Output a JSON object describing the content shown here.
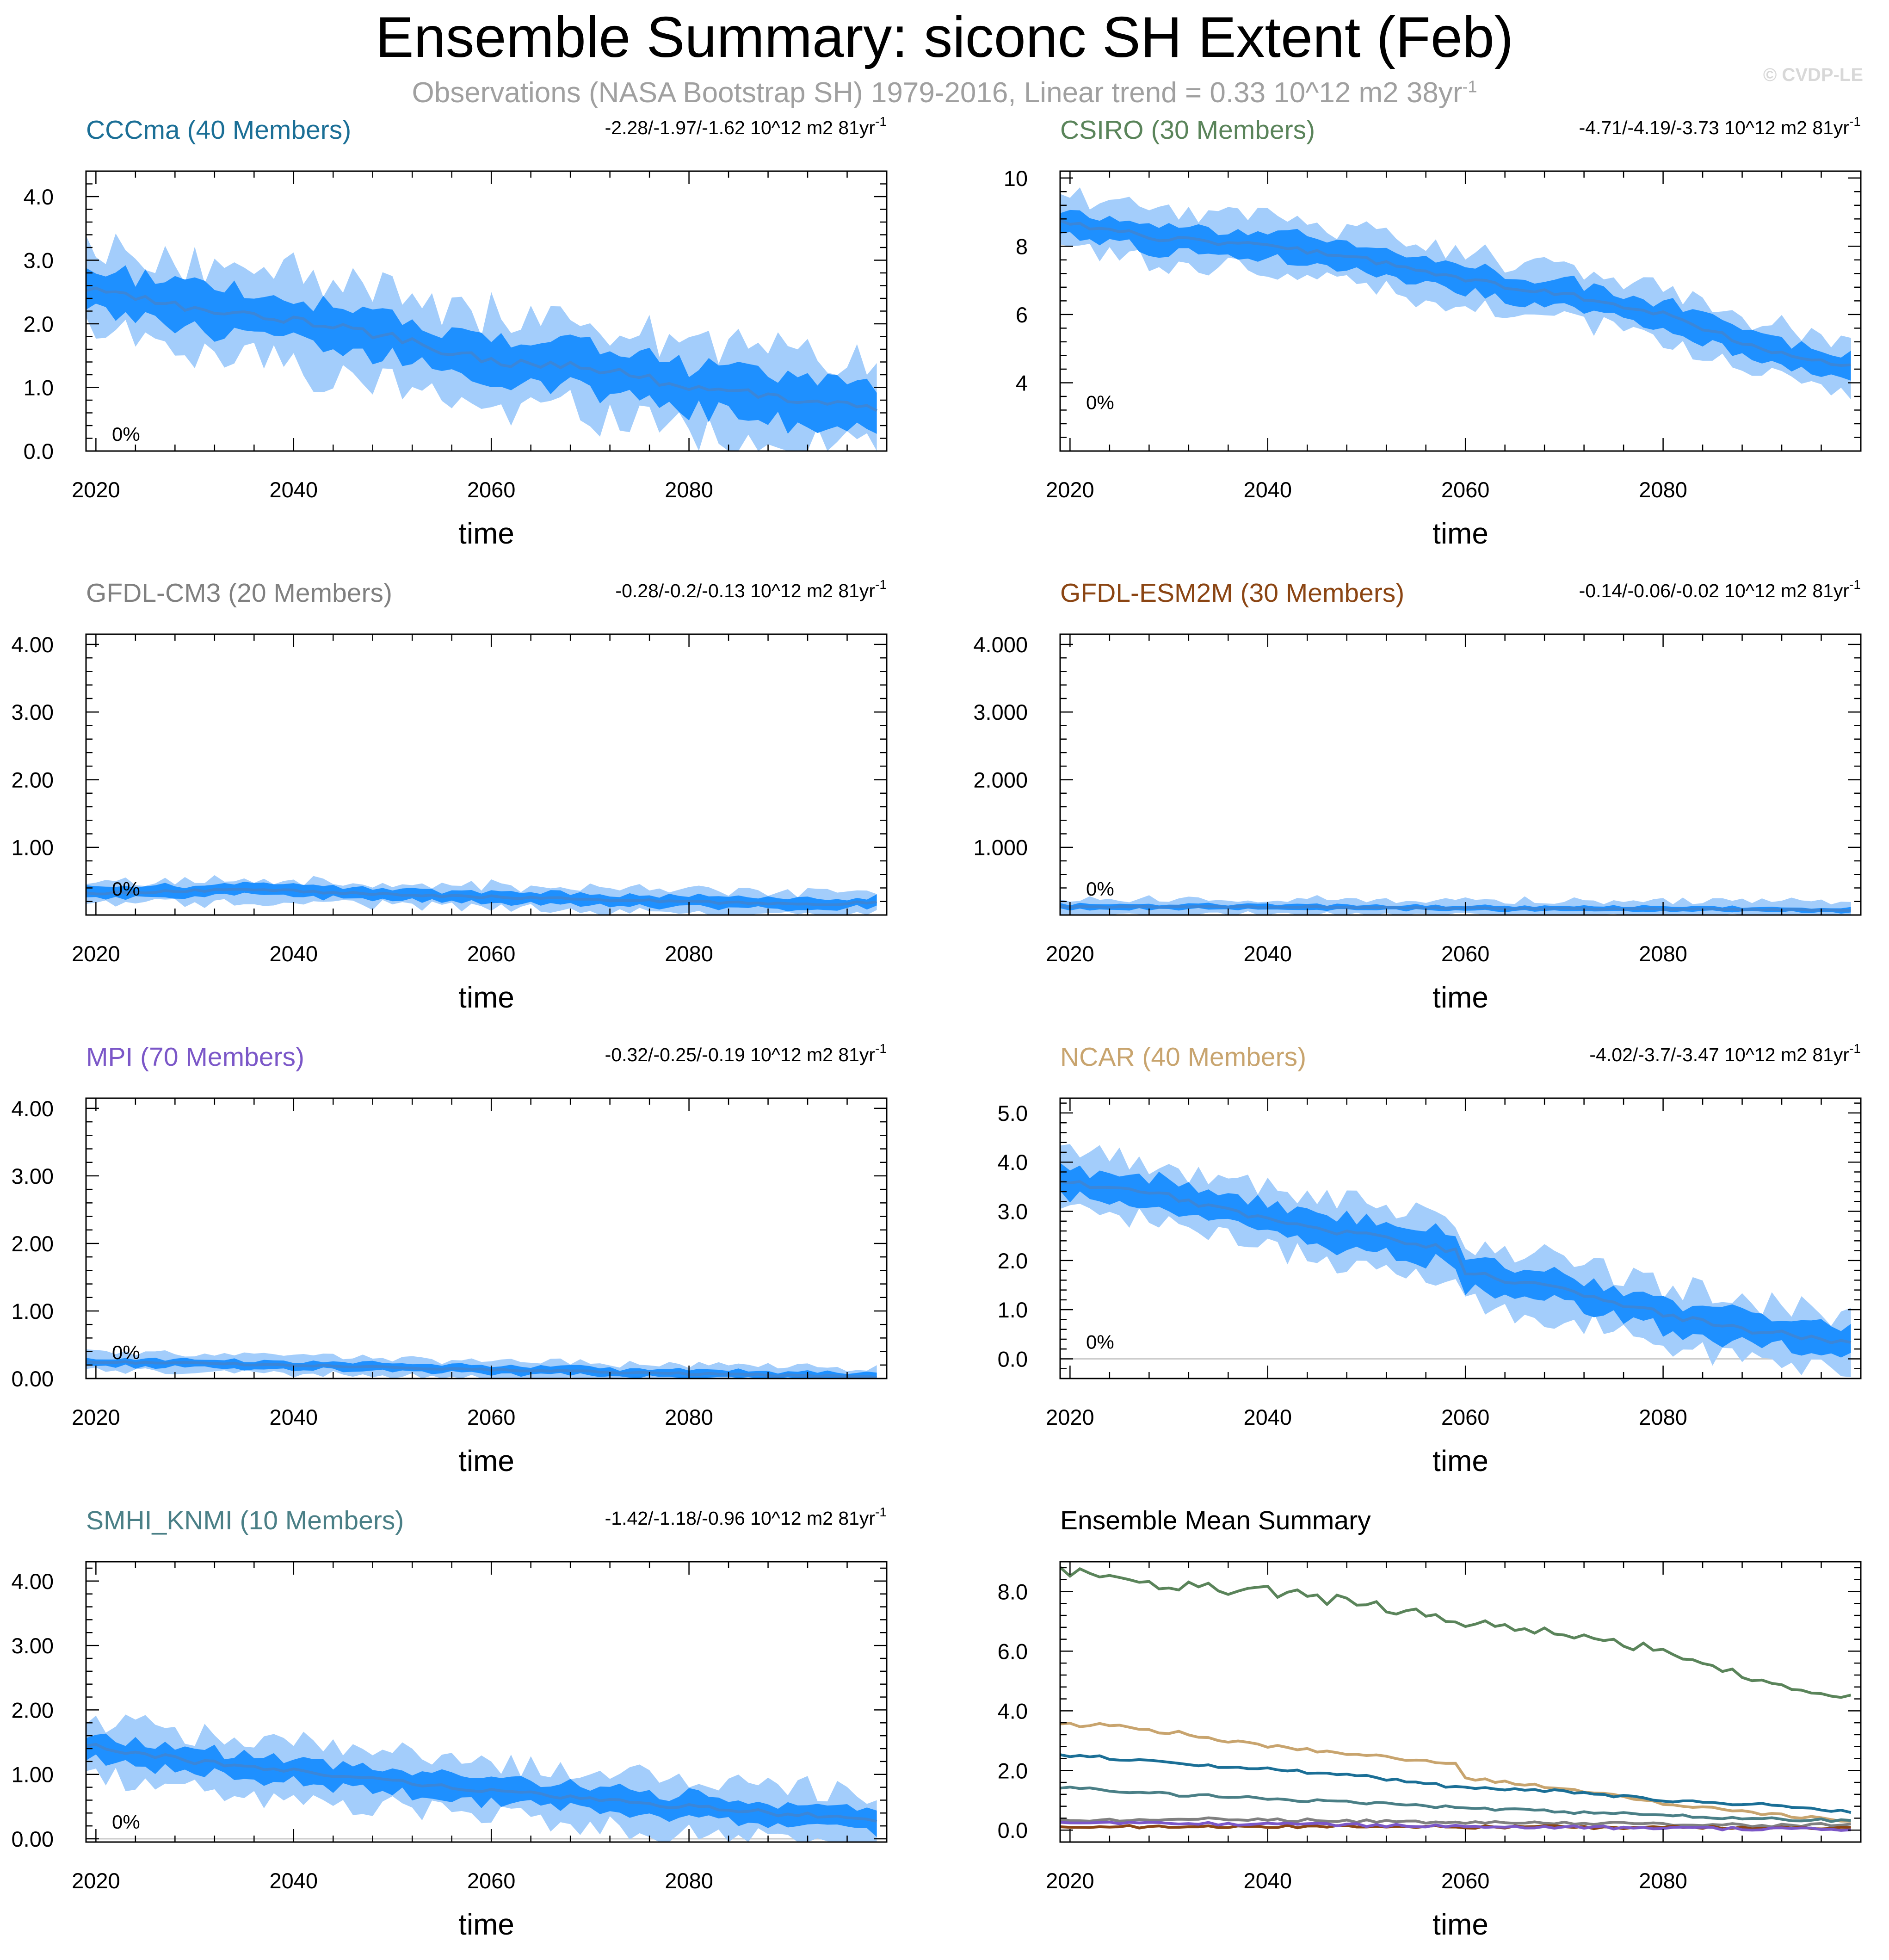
{
  "figure": {
    "title": "Ensemble Summary: siconc SH Extent (Feb)",
    "subtitle_main": "Observations (NASA Bootstrap SH) 1979-2016, Linear trend = 0.33 10^12 m2 38yr",
    "subtitle_sup": "-1",
    "copyright": "© CVDP-LE",
    "colors": {
      "inner_band": "#1e90ff",
      "outer_band": "#a3cdfb",
      "mean_line": "#3b86d8",
      "axis": "#000000",
      "zero_line": "#cccccc"
    }
  },
  "chart_data": [
    {
      "type": "area",
      "title": "CCCma (40 Members)",
      "title_color": "#1b6f96",
      "trend_text": "-2.28/-1.97/-1.62 10^12 m2 81yr",
      "trend_sup": "-1",
      "percent_label": "0%",
      "xlabel": "time",
      "ylabel": "",
      "xlim": [
        2019,
        2100
      ],
      "ylim": [
        0.0,
        4.4
      ],
      "xticks": [
        2020,
        2040,
        2060,
        2080
      ],
      "yticks": [
        0.0,
        1.0,
        2.0,
        3.0,
        4.0
      ],
      "ytick_labels": [
        "0.0",
        "1.0",
        "2.0",
        "3.0",
        "4.0"
      ],
      "zero_line": true,
      "mean": [
        [
          2019,
          2.55
        ],
        [
          2030,
          2.25
        ],
        [
          2040,
          2.05
        ],
        [
          2050,
          1.8
        ],
        [
          2060,
          1.4
        ],
        [
          2070,
          1.3
        ],
        [
          2080,
          1.0
        ],
        [
          2090,
          0.85
        ],
        [
          2100,
          0.6
        ]
      ],
      "inner_halfwidth": 0.35,
      "outer_halfwidth": 0.72
    },
    {
      "type": "area",
      "title": "CSIRO (30 Members)",
      "title_color": "#5a845a",
      "trend_text": "-4.71/-4.19/-3.73 10^12 m2 81yr",
      "trend_sup": "-1",
      "percent_label": "0%",
      "xlabel": "time",
      "ylabel": "",
      "xlim": [
        2019,
        2100
      ],
      "ylim": [
        2.0,
        10.2
      ],
      "xticks": [
        2020,
        2040,
        2060,
        2080
      ],
      "yticks": [
        4,
        6,
        8,
        10
      ],
      "ytick_labels": [
        "4",
        "6",
        "8",
        "10"
      ],
      "zero_line": false,
      "mean": [
        [
          2019,
          8.7
        ],
        [
          2030,
          8.2
        ],
        [
          2040,
          8.0
        ],
        [
          2050,
          7.6
        ],
        [
          2060,
          7.0
        ],
        [
          2070,
          6.6
        ],
        [
          2080,
          6.0
        ],
        [
          2090,
          5.0
        ],
        [
          2100,
          4.4
        ]
      ],
      "inner_halfwidth": 0.38,
      "outer_halfwidth": 0.75
    },
    {
      "type": "area",
      "title": "GFDL-CM3 (20 Members)",
      "title_color": "#808080",
      "trend_text": "-0.28/-0.2/-0.13 10^12 m2 81yr",
      "trend_sup": "-1",
      "percent_label": "0%",
      "xlabel": "time",
      "ylabel": "",
      "xlim": [
        2019,
        2100
      ],
      "ylim": [
        0.0,
        4.15
      ],
      "xticks": [
        2020,
        2040,
        2060,
        2080
      ],
      "yticks": [
        1.0,
        2.0,
        3.0,
        4.0
      ],
      "ytick_labels": [
        "1.00",
        "2.00",
        "3.00",
        "4.00"
      ],
      "zero_line": false,
      "mean": [
        [
          2019,
          0.32
        ],
        [
          2035,
          0.38
        ],
        [
          2050,
          0.3
        ],
        [
          2065,
          0.25
        ],
        [
          2080,
          0.2
        ],
        [
          2092,
          0.15
        ],
        [
          2100,
          0.2
        ]
      ],
      "inner_halfwidth": 0.08,
      "outer_halfwidth": 0.17
    },
    {
      "type": "area",
      "title": "GFDL-ESM2M (30 Members)",
      "title_color": "#8b4513",
      "trend_text": "-0.14/-0.06/-0.02 10^12 m2 81yr",
      "trend_sup": "-1",
      "percent_label": "0%",
      "xlabel": "time",
      "ylabel": "",
      "xlim": [
        2019,
        2100
      ],
      "ylim": [
        0.0,
        4.15
      ],
      "xticks": [
        2020,
        2040,
        2060,
        2080
      ],
      "yticks": [
        1.0,
        2.0,
        3.0,
        4.0
      ],
      "ytick_labels": [
        "1.000",
        "2.000",
        "3.000",
        "4.000"
      ],
      "zero_line": false,
      "mean": [
        [
          2019,
          0.12
        ],
        [
          2040,
          0.12
        ],
        [
          2060,
          0.1
        ],
        [
          2080,
          0.09
        ],
        [
          2100,
          0.07
        ]
      ],
      "inner_halfwidth": 0.04,
      "outer_halfwidth": 0.12
    },
    {
      "type": "area",
      "title": "MPI (70 Members)",
      "title_color": "#7b57c8",
      "trend_text": "-0.32/-0.25/-0.19 10^12 m2 81yr",
      "trend_sup": "-1",
      "percent_label": "0%",
      "xlabel": "time",
      "ylabel": "",
      "xlim": [
        2019,
        2100
      ],
      "ylim": [
        0.0,
        4.15
      ],
      "xticks": [
        2020,
        2040,
        2060,
        2080
      ],
      "yticks": [
        0.0,
        1.0,
        2.0,
        3.0,
        4.0
      ],
      "ytick_labels": [
        "0.00",
        "1.00",
        "2.00",
        "3.00",
        "4.00"
      ],
      "zero_line": true,
      "mean": [
        [
          2019,
          0.25
        ],
        [
          2040,
          0.2
        ],
        [
          2060,
          0.13
        ],
        [
          2080,
          0.07
        ],
        [
          2100,
          0.02
        ]
      ],
      "inner_halfwidth": 0.06,
      "outer_halfwidth": 0.13
    },
    {
      "type": "area",
      "title": "NCAR (40 Members)",
      "title_color": "#c8a46e",
      "trend_text": "-4.02/-3.7/-3.47 10^12 m2 81yr",
      "trend_sup": "-1",
      "percent_label": "0%",
      "xlabel": "time",
      "ylabel": "",
      "xlim": [
        2019,
        2100
      ],
      "ylim": [
        -0.4,
        5.3
      ],
      "xticks": [
        2020,
        2040,
        2060,
        2080
      ],
      "yticks": [
        0.0,
        1.0,
        2.0,
        3.0,
        4.0,
        5.0
      ],
      "ytick_labels": [
        "0.0",
        "1.0",
        "2.0",
        "3.0",
        "4.0",
        "5.0"
      ],
      "zero_line": true,
      "mean": [
        [
          2019,
          3.6
        ],
        [
          2030,
          3.3
        ],
        [
          2040,
          2.8
        ],
        [
          2050,
          2.5
        ],
        [
          2059,
          2.2
        ],
        [
          2060,
          1.75
        ],
        [
          2070,
          1.4
        ],
        [
          2080,
          0.9
        ],
        [
          2090,
          0.55
        ],
        [
          2100,
          0.3
        ]
      ],
      "inner_halfwidth": 0.3,
      "outer_halfwidth": 0.6
    },
    {
      "type": "area",
      "title": "SMHI_KNMI (10 Members)",
      "title_color": "#4a7f86",
      "trend_text": "-1.42/-1.18/-0.96 10^12 m2 81yr",
      "trend_sup": "-1",
      "percent_label": "0%",
      "xlabel": "time",
      "ylabel": "",
      "xlim": [
        2019,
        2100
      ],
      "ylim": [
        -0.05,
        4.3
      ],
      "xticks": [
        2020,
        2040,
        2060,
        2080
      ],
      "yticks": [
        0.0,
        1.0,
        2.0,
        3.0,
        4.0
      ],
      "ytick_labels": [
        "0.00",
        "1.00",
        "2.00",
        "3.00",
        "4.00"
      ],
      "zero_line": true,
      "mean": [
        [
          2019,
          1.45
        ],
        [
          2030,
          1.2
        ],
        [
          2040,
          1.05
        ],
        [
          2050,
          0.9
        ],
        [
          2060,
          0.75
        ],
        [
          2070,
          0.6
        ],
        [
          2080,
          0.5
        ],
        [
          2090,
          0.38
        ],
        [
          2100,
          0.3
        ]
      ],
      "inner_halfwidth": 0.18,
      "outer_halfwidth": 0.42
    },
    {
      "type": "line",
      "title": "Ensemble Mean Summary",
      "title_color": "#000000",
      "xlabel": "time",
      "ylabel": "",
      "xlim": [
        2019,
        2100
      ],
      "ylim": [
        -0.4,
        9.0
      ],
      "xticks": [
        2020,
        2040,
        2060,
        2080
      ],
      "yticks": [
        0.0,
        2.0,
        4.0,
        6.0,
        8.0
      ],
      "ytick_labels": [
        "0.0",
        "2.0",
        "4.0",
        "6.0",
        "8.0"
      ],
      "series": [
        {
          "name": "CSIRO",
          "color": "#5a845a",
          "values": [
            [
              2019,
              8.7
            ],
            [
              2030,
              8.2
            ],
            [
              2040,
              8.0
            ],
            [
              2050,
              7.6
            ],
            [
              2060,
              7.0
            ],
            [
              2070,
              6.6
            ],
            [
              2080,
              6.0
            ],
            [
              2090,
              5.0
            ],
            [
              2100,
              4.4
            ]
          ]
        },
        {
          "name": "NCAR",
          "color": "#c8a46e",
          "values": [
            [
              2019,
              3.6
            ],
            [
              2030,
              3.3
            ],
            [
              2040,
              2.8
            ],
            [
              2050,
              2.5
            ],
            [
              2059,
              2.2
            ],
            [
              2060,
              1.75
            ],
            [
              2070,
              1.4
            ],
            [
              2080,
              0.9
            ],
            [
              2090,
              0.55
            ],
            [
              2100,
              0.3
            ]
          ]
        },
        {
          "name": "CCCma",
          "color": "#1b6f96",
          "values": [
            [
              2019,
              2.55
            ],
            [
              2030,
              2.25
            ],
            [
              2040,
              2.05
            ],
            [
              2050,
              1.8
            ],
            [
              2060,
              1.4
            ],
            [
              2070,
              1.3
            ],
            [
              2080,
              1.0
            ],
            [
              2090,
              0.85
            ],
            [
              2100,
              0.6
            ]
          ]
        },
        {
          "name": "SMHI_KNMI",
          "color": "#4a7f86",
          "values": [
            [
              2019,
              1.45
            ],
            [
              2030,
              1.2
            ],
            [
              2040,
              1.05
            ],
            [
              2050,
              0.9
            ],
            [
              2060,
              0.75
            ],
            [
              2070,
              0.6
            ],
            [
              2080,
              0.5
            ],
            [
              2090,
              0.38
            ],
            [
              2100,
              0.3
            ]
          ]
        },
        {
          "name": "GFDL-CM3",
          "color": "#808080",
          "values": [
            [
              2019,
              0.32
            ],
            [
              2035,
              0.38
            ],
            [
              2050,
              0.3
            ],
            [
              2065,
              0.25
            ],
            [
              2080,
              0.2
            ],
            [
              2092,
              0.15
            ],
            [
              2100,
              0.2
            ]
          ]
        },
        {
          "name": "GFDL-ESM2M",
          "color": "#8b4513",
          "values": [
            [
              2019,
              0.12
            ],
            [
              2040,
              0.12
            ],
            [
              2060,
              0.1
            ],
            [
              2080,
              0.09
            ],
            [
              2100,
              0.07
            ]
          ]
        },
        {
          "name": "MPI",
          "color": "#7b57c8",
          "values": [
            [
              2019,
              0.25
            ],
            [
              2040,
              0.2
            ],
            [
              2060,
              0.13
            ],
            [
              2080,
              0.07
            ],
            [
              2100,
              0.02
            ]
          ]
        }
      ]
    }
  ]
}
